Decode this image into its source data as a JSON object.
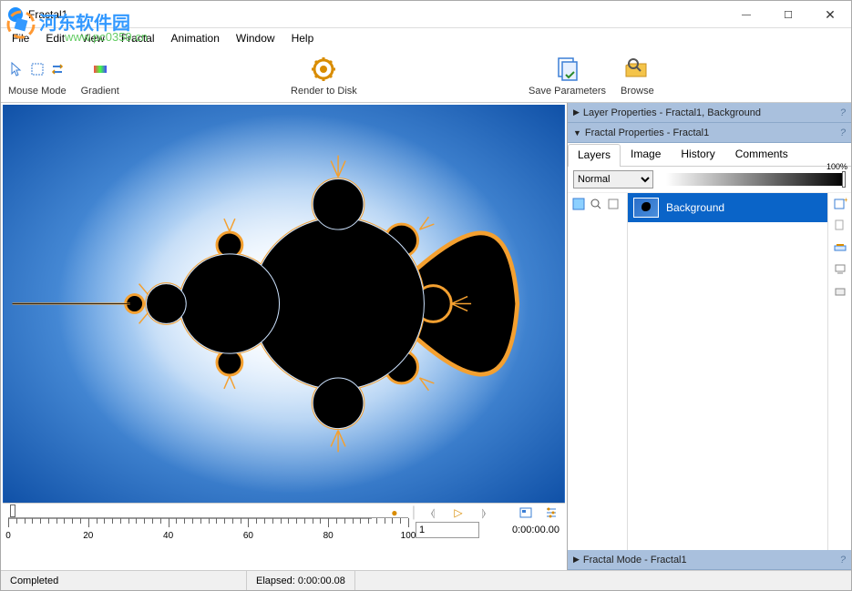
{
  "window": {
    "title": "Fractal1"
  },
  "watermark": {
    "brand": "河东软件园",
    "url": "www.pc0359.cn"
  },
  "menu": {
    "items": [
      "File",
      "Edit",
      "View",
      "Fractal",
      "Animation",
      "Window",
      "Help"
    ]
  },
  "toolbar": {
    "groups": [
      {
        "label": "Mouse Mode"
      },
      {
        "label": "Gradient"
      },
      {
        "label": "Render to Disk"
      },
      {
        "label": "Save Parameters"
      },
      {
        "label": "Browse"
      }
    ]
  },
  "timeline": {
    "frame": "1",
    "time": "0:00:00.00",
    "ruler": {
      "min": 0,
      "max": 100,
      "step": 20,
      "minor_step": 2
    },
    "playhead_color": "#d98c00"
  },
  "right": {
    "header1": "Layer Properties - Fractal1, Background",
    "header2": "Fractal Properties - Fractal1",
    "header3": "Fractal Mode - Fractal1",
    "tabs": [
      "Layers",
      "Image",
      "History",
      "Comments"
    ],
    "active_tab": 0,
    "blend_mode": "Normal",
    "opacity": "100%",
    "layer": {
      "name": "Background"
    }
  },
  "status": {
    "left": "Completed",
    "elapsed": "Elapsed: 0:00:00.08"
  },
  "colors": {
    "panel_hdr": "#a9c0dd",
    "selection": "#0a64c8",
    "canvas_blue1": "#1a5eb8",
    "canvas_blue2": "#3b7fd6"
  }
}
